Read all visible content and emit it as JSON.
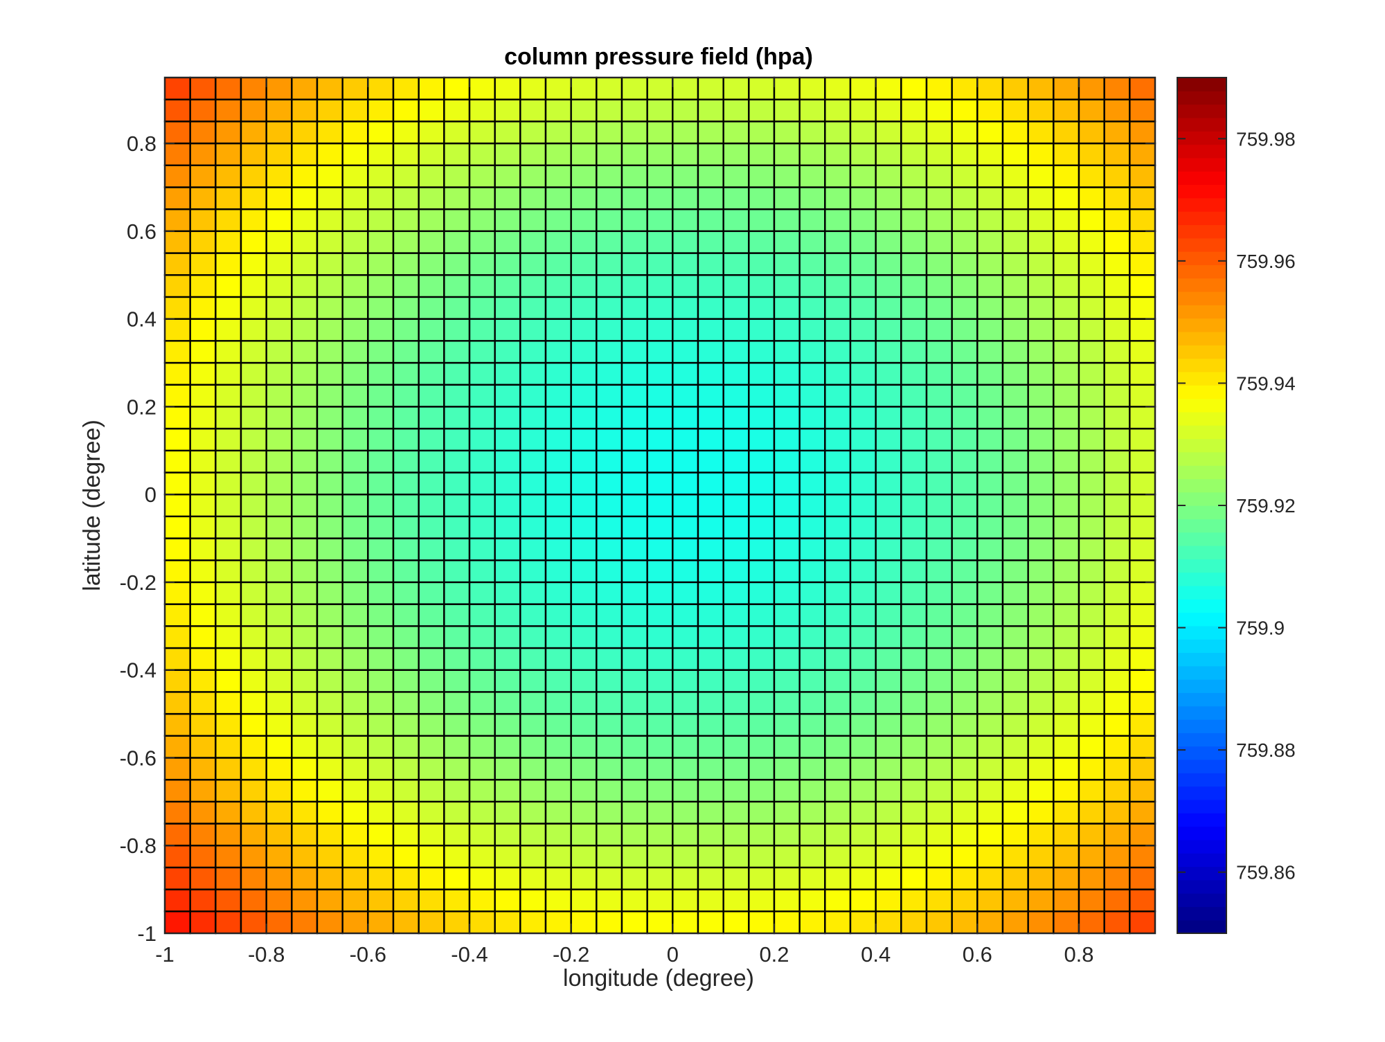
{
  "chart_data": {
    "type": "heatmap",
    "title": "column pressure field (hpa)",
    "xlabel": "longitude (degree)",
    "ylabel": "latitude (degree)",
    "xlim": [
      -1,
      0.95
    ],
    "ylim": [
      -1,
      0.95
    ],
    "grid": {
      "x_start": -1,
      "y_start": -1,
      "step": 0.05,
      "nx": 39,
      "ny": 39,
      "cell_edges": "black"
    },
    "field": {
      "description_values": {
        "min_at_center": 759.905,
        "center_x": 0.025,
        "center_y": 0.025,
        "corner_value": 759.96
      }
    },
    "xticks": [
      {
        "value": -1,
        "label": "-1"
      },
      {
        "value": -0.8,
        "label": "-0.8"
      },
      {
        "value": -0.6,
        "label": "-0.6"
      },
      {
        "value": -0.4,
        "label": "-0.4"
      },
      {
        "value": -0.2,
        "label": "-0.2"
      },
      {
        "value": 0,
        "label": "0"
      },
      {
        "value": 0.2,
        "label": "0.2"
      },
      {
        "value": 0.4,
        "label": "0.4"
      },
      {
        "value": 0.6,
        "label": "0.6"
      },
      {
        "value": 0.8,
        "label": "0.8"
      }
    ],
    "yticks": [
      {
        "value": -1,
        "label": "-1"
      },
      {
        "value": -0.8,
        "label": "-0.8"
      },
      {
        "value": -0.6,
        "label": "-0.6"
      },
      {
        "value": -0.4,
        "label": "-0.4"
      },
      {
        "value": -0.2,
        "label": "-0.2"
      },
      {
        "value": 0,
        "label": "0"
      },
      {
        "value": 0.2,
        "label": "0.2"
      },
      {
        "value": 0.4,
        "label": "0.4"
      },
      {
        "value": 0.6,
        "label": "0.6"
      },
      {
        "value": 0.8,
        "label": "0.8"
      }
    ],
    "colorbar": {
      "colormap": "jet",
      "clim": [
        759.85,
        759.99
      ],
      "ticks": [
        {
          "value": 759.86,
          "label": "759.86"
        },
        {
          "value": 759.88,
          "label": "759.88"
        },
        {
          "value": 759.9,
          "label": "759.9"
        },
        {
          "value": 759.92,
          "label": "759.92"
        },
        {
          "value": 759.94,
          "label": "759.94"
        },
        {
          "value": 759.96,
          "label": "759.96"
        },
        {
          "value": 759.98,
          "label": "759.98"
        }
      ]
    }
  }
}
